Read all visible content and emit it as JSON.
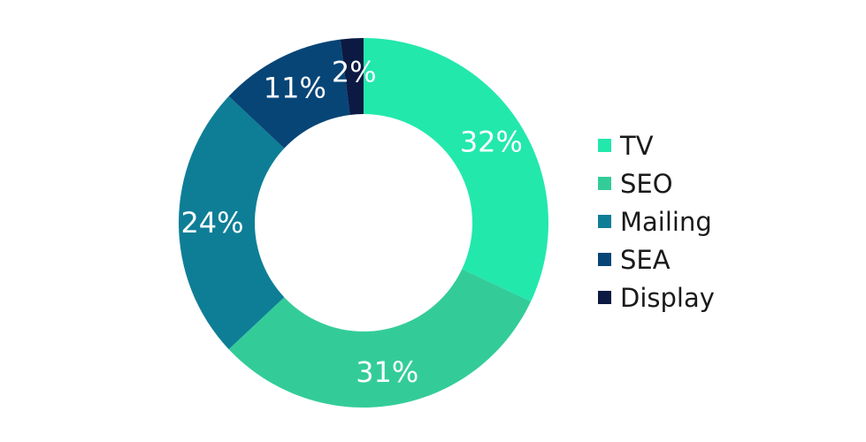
{
  "chart_data": {
    "type": "pie",
    "title": "",
    "donut": true,
    "legend_position": "right",
    "categories": [
      "TV",
      "SEO",
      "Mailing",
      "SEA",
      "Display"
    ],
    "values": [
      32,
      31,
      24,
      11,
      2
    ],
    "value_labels": [
      "32%",
      "31%",
      "24%",
      "11%",
      "2%"
    ],
    "colors": [
      "#22e8ac",
      "#33cc99",
      "#0e7e96",
      "#074577",
      "#0c1a43"
    ]
  }
}
